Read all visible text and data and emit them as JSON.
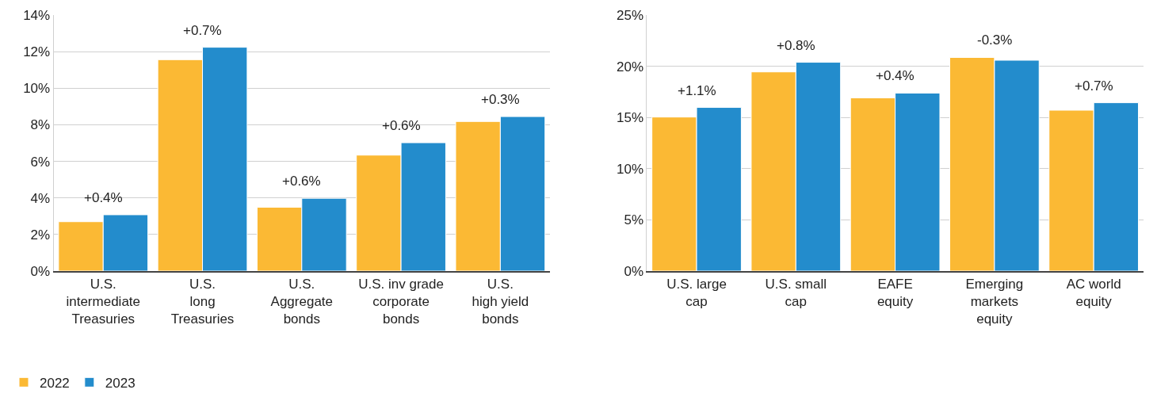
{
  "chart_data": [
    {
      "type": "bar",
      "categories": [
        "U.S.\nintermediate\nTreasuries",
        "U.S.\nlong\nTreasuries",
        "U.S.\nAggregate\nbonds",
        "U.S. inv grade\ncorporate\nbonds",
        "U.S.\nhigh yield\nbonds"
      ],
      "series": [
        {
          "name": "2022",
          "color": "#fbb934",
          "values": [
            2.7,
            11.56,
            3.49,
            6.34,
            8.18
          ]
        },
        {
          "name": "2023",
          "color": "#238ccc",
          "values": [
            3.08,
            12.24,
            3.98,
            7.02,
            8.45
          ]
        }
      ],
      "ylim": [
        0,
        14
      ],
      "yticks": [
        {
          "value": 0,
          "label": "0%"
        },
        {
          "value": 2,
          "label": "2%"
        },
        {
          "value": 4,
          "label": "4%"
        },
        {
          "value": 6,
          "label": "6%"
        },
        {
          "value": 8,
          "label": "8%"
        },
        {
          "value": 10,
          "label": "10%"
        },
        {
          "value": 12,
          "label": "12%"
        },
        {
          "value": 14,
          "label": "14%"
        }
      ],
      "annotations": [
        {
          "text": "+0.4%",
          "x": "U.S.\nintermediate\nTreasuries",
          "y": 3.08
        },
        {
          "text": "+0.7%",
          "x": "U.S.\nlong\nTreasuries",
          "y": 12.24
        },
        {
          "text": "+0.6%",
          "x": "U.S.\nAggregate\nbonds",
          "y": 3.98
        },
        {
          "text": "+0.6%",
          "x": "U.S. inv grade\ncorporate\nbonds",
          "y": 7.02
        },
        {
          "text": "+0.3%",
          "x": "U.S.\nhigh yield\nbonds",
          "y": 8.45
        }
      ],
      "grid": "y",
      "legend": "bottom left"
    },
    {
      "type": "bar",
      "categories": [
        "U.S. large\ncap",
        "U.S. small\ncap",
        "EAFE\nequity",
        "Emerging\nmarkets\nequity",
        "AC world\nequity"
      ],
      "series": [
        {
          "color": "#fbb934",
          "values": [
            15.04,
            19.45,
            16.91,
            20.86,
            15.71
          ]
        },
        {
          "color": "#238ccc",
          "values": [
            15.98,
            20.39,
            17.38,
            20.59,
            16.44
          ]
        }
      ],
      "ylim": [
        0,
        25
      ],
      "yticks": [
        {
          "value": 0,
          "label": "0%"
        },
        {
          "value": 5,
          "label": "5%"
        },
        {
          "value": 10,
          "label": "10%"
        },
        {
          "value": 15,
          "label": "15%"
        },
        {
          "value": 20,
          "label": "20%"
        },
        {
          "value": 25,
          "label": "25%"
        }
      ],
      "annotations": [
        {
          "text": "+1.1%",
          "x": "U.S. large\ncap",
          "y": 15.98
        },
        {
          "text": "+0.8%",
          "x": "U.S. small\ncap",
          "y": 20.39
        },
        {
          "text": "+0.4%",
          "x": "EAFE\nequity",
          "y": 17.38
        },
        {
          "text": "-0.3%",
          "x": "Emerging\nmarkets\nequity",
          "y": 20.86
        },
        {
          "text": "+0.7%",
          "x": "AC world\nequity",
          "y": 16.44
        }
      ],
      "grid": "y"
    }
  ]
}
